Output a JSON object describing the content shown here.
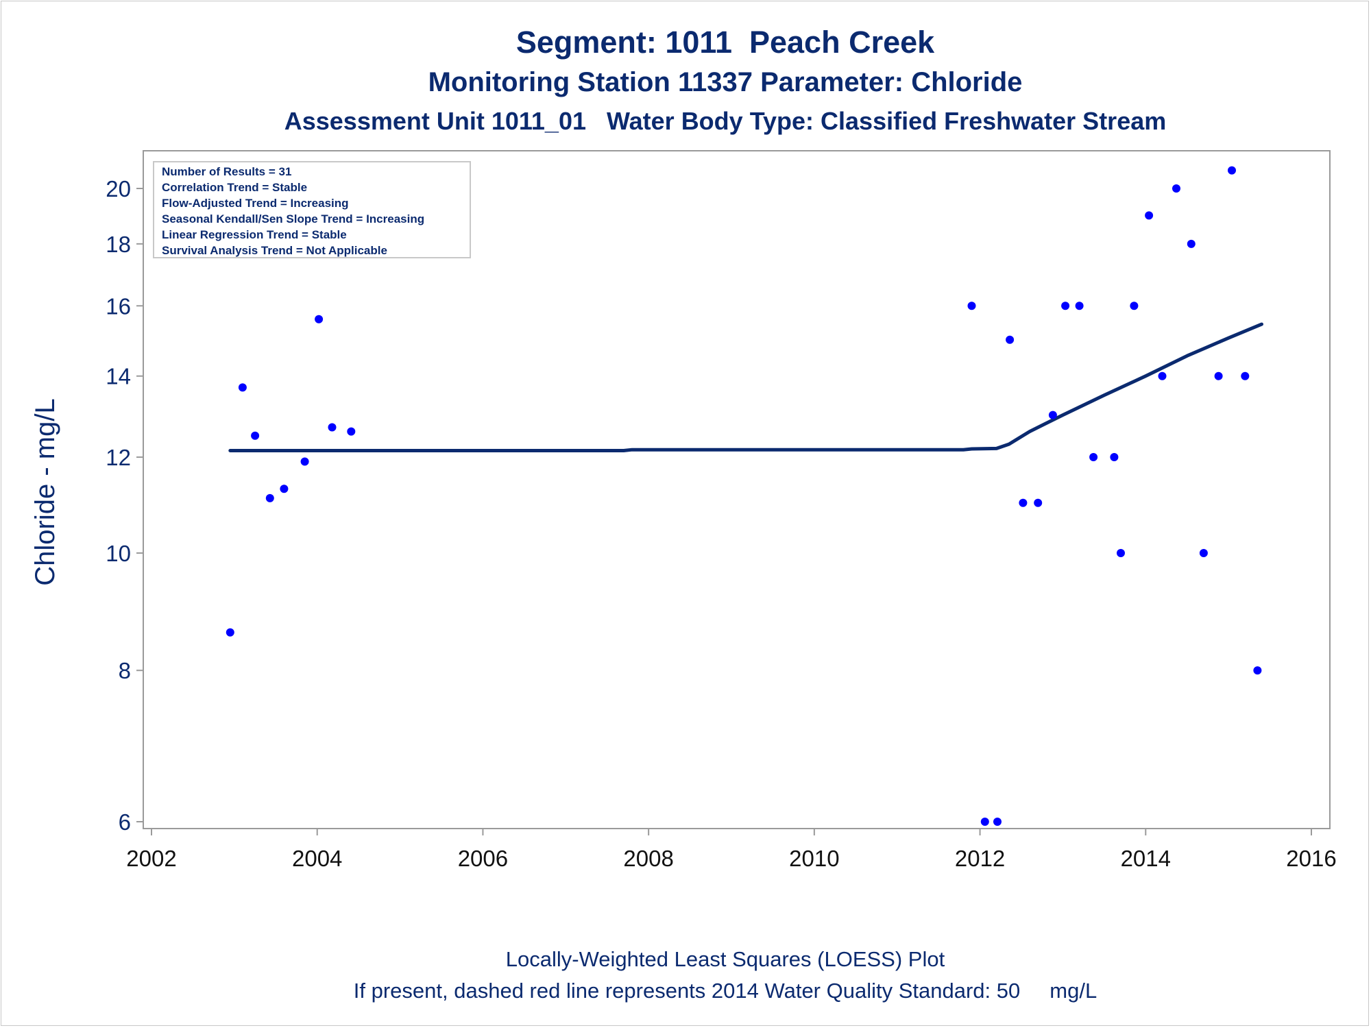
{
  "titles": {
    "line1": "Segment: 1011  Peach Creek",
    "line2": "Monitoring Station 11337 Parameter: Chloride",
    "line3": "Assessment Unit 1011_01   Water Body Type: Classified Freshwater Stream"
  },
  "footnotes": {
    "line1": "Locally-Weighted Least Squares (LOESS) Plot",
    "line2": "If present, dashed red line represents 2014 Water Quality Standard: 50     mg/L"
  },
  "stats": [
    "Number of Results = 31",
    "Correlation Trend = Stable",
    "Flow-Adjusted Trend = Increasing",
    "Seasonal Kendall/Sen Slope Trend = Increasing",
    "Linear Regression Trend = Stable",
    "Survival Analysis Trend = Not Applicable"
  ],
  "colors": {
    "text": "#0b2a6f",
    "points": "#0000ff",
    "loess": "#0b2a6f",
    "axis": "#9a9a9a"
  },
  "chart_data": {
    "type": "scatter",
    "ylabel": "Chloride - mg/L",
    "xlabel": "",
    "yscale": "log",
    "xlim": [
      2002,
      2016
    ],
    "ylim": [
      5.9,
      21.5
    ],
    "xticks": [
      2002,
      2004,
      2006,
      2008,
      2010,
      2012,
      2014,
      2016
    ],
    "yticks": [
      6,
      8,
      10,
      12,
      14,
      16,
      18,
      20
    ],
    "points": [
      {
        "x": 2002.95,
        "y": 8.6
      },
      {
        "x": 2003.1,
        "y": 13.7
      },
      {
        "x": 2003.25,
        "y": 12.5
      },
      {
        "x": 2003.43,
        "y": 11.1
      },
      {
        "x": 2003.6,
        "y": 11.3
      },
      {
        "x": 2003.85,
        "y": 11.9
      },
      {
        "x": 2004.02,
        "y": 15.6
      },
      {
        "x": 2004.18,
        "y": 12.7
      },
      {
        "x": 2004.41,
        "y": 12.6
      },
      {
        "x": 2011.9,
        "y": 16
      },
      {
        "x": 2012.06,
        "y": 6
      },
      {
        "x": 2012.21,
        "y": 6
      },
      {
        "x": 2012.36,
        "y": 15
      },
      {
        "x": 2012.52,
        "y": 11
      },
      {
        "x": 2012.7,
        "y": 11
      },
      {
        "x": 2012.88,
        "y": 13
      },
      {
        "x": 2013.03,
        "y": 16
      },
      {
        "x": 2013.2,
        "y": 16
      },
      {
        "x": 2013.37,
        "y": 12
      },
      {
        "x": 2013.62,
        "y": 12
      },
      {
        "x": 2013.7,
        "y": 10
      },
      {
        "x": 2013.86,
        "y": 16
      },
      {
        "x": 2014.04,
        "y": 19
      },
      {
        "x": 2014.2,
        "y": 14
      },
      {
        "x": 2014.37,
        "y": 20
      },
      {
        "x": 2014.55,
        "y": 18
      },
      {
        "x": 2014.7,
        "y": 10
      },
      {
        "x": 2014.88,
        "y": 14
      },
      {
        "x": 2015.04,
        "y": 20.7
      },
      {
        "x": 2015.2,
        "y": 14
      },
      {
        "x": 2015.35,
        "y": 8
      }
    ],
    "loess": [
      {
        "x": 2002.95,
        "y": 12.15
      },
      {
        "x": 2007.7,
        "y": 12.15
      },
      {
        "x": 2007.8,
        "y": 12.17
      },
      {
        "x": 2011.8,
        "y": 12.17
      },
      {
        "x": 2011.9,
        "y": 12.19
      },
      {
        "x": 2012.2,
        "y": 12.2
      },
      {
        "x": 2012.35,
        "y": 12.3
      },
      {
        "x": 2012.6,
        "y": 12.6
      },
      {
        "x": 2013.0,
        "y": 13.0
      },
      {
        "x": 2013.5,
        "y": 13.5
      },
      {
        "x": 2014.0,
        "y": 14.0
      },
      {
        "x": 2014.5,
        "y": 14.55
      },
      {
        "x": 2015.0,
        "y": 15.05
      },
      {
        "x": 2015.4,
        "y": 15.45
      }
    ]
  }
}
